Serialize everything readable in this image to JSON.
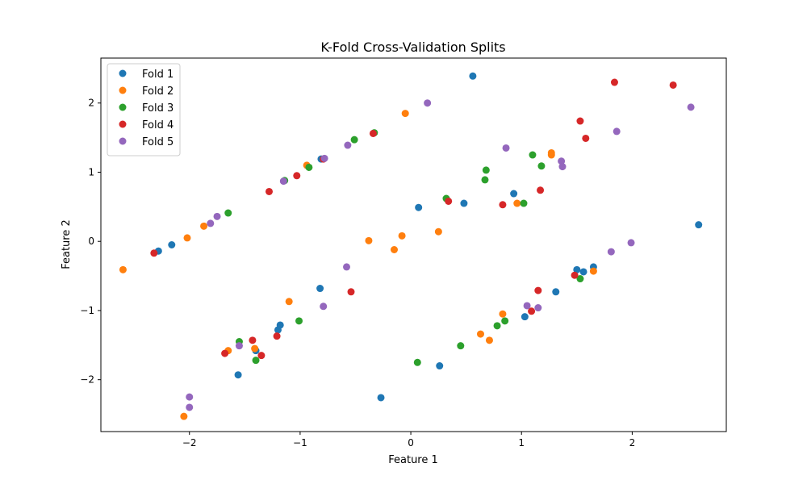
{
  "chart_data": {
    "type": "scatter",
    "title": "K-Fold Cross-Validation Splits",
    "xlabel": "Feature 1",
    "ylabel": "Feature 2",
    "xlim": [
      -2.8,
      2.85
    ],
    "ylim": [
      -2.75,
      2.65
    ],
    "x_ticks": [
      -2,
      -1,
      0,
      1,
      2
    ],
    "x_tick_labels": [
      "−2",
      "−1",
      "0",
      "1",
      "2"
    ],
    "y_ticks": [
      -2,
      -1,
      0,
      1,
      2
    ],
    "y_tick_labels": [
      "−2",
      "−1",
      "0",
      "1",
      "2"
    ],
    "grid": false,
    "legend_position": "top-left",
    "series": [
      {
        "name": "Fold 1",
        "color": "#1f77b4",
        "points": [
          [
            -2.28,
            -0.14
          ],
          [
            -2.16,
            -0.05
          ],
          [
            0.56,
            2.39
          ],
          [
            -0.81,
            1.19
          ],
          [
            0.07,
            0.49
          ],
          [
            0.48,
            0.55
          ],
          [
            0.93,
            0.69
          ],
          [
            -0.82,
            -0.68
          ],
          [
            -1.2,
            -1.28
          ],
          [
            -1.18,
            -1.21
          ],
          [
            -1.4,
            -1.58
          ],
          [
            -1.56,
            -1.93
          ],
          [
            -0.27,
            -2.26
          ],
          [
            0.26,
            -1.8
          ],
          [
            1.03,
            -1.09
          ],
          [
            1.31,
            -0.73
          ],
          [
            1.5,
            -0.41
          ],
          [
            1.56,
            -0.44
          ],
          [
            1.65,
            -0.37
          ],
          [
            2.6,
            0.24
          ]
        ]
      },
      {
        "name": "Fold 2",
        "color": "#ff7f0e",
        "points": [
          [
            -2.6,
            -0.41
          ],
          [
            -2.02,
            0.05
          ],
          [
            -1.87,
            0.22
          ],
          [
            -0.94,
            1.1
          ],
          [
            -0.05,
            1.85
          ],
          [
            -0.38,
            0.01
          ],
          [
            -0.15,
            -0.12
          ],
          [
            -0.08,
            0.08
          ],
          [
            0.25,
            0.14
          ],
          [
            0.96,
            0.55
          ],
          [
            1.27,
            1.25
          ],
          [
            1.27,
            1.28
          ],
          [
            -1.1,
            -0.87
          ],
          [
            -1.65,
            -1.58
          ],
          [
            -1.41,
            -1.55
          ],
          [
            -2.05,
            -2.53
          ],
          [
            0.63,
            -1.34
          ],
          [
            0.71,
            -1.43
          ],
          [
            0.83,
            -1.05
          ],
          [
            1.65,
            -0.43
          ]
        ]
      },
      {
        "name": "Fold 3",
        "color": "#2ca02c",
        "points": [
          [
            -1.65,
            0.41
          ],
          [
            -1.14,
            0.88
          ],
          [
            -0.92,
            1.07
          ],
          [
            -0.51,
            1.47
          ],
          [
            -0.33,
            1.57
          ],
          [
            0.32,
            0.62
          ],
          [
            0.67,
            0.89
          ],
          [
            0.68,
            1.03
          ],
          [
            1.02,
            0.55
          ],
          [
            1.1,
            1.25
          ],
          [
            1.18,
            1.09
          ],
          [
            -1.55,
            -1.45
          ],
          [
            -1.4,
            -1.72
          ],
          [
            -1.01,
            -1.15
          ],
          [
            0.06,
            -1.75
          ],
          [
            0.45,
            -1.51
          ],
          [
            0.78,
            -1.22
          ],
          [
            0.85,
            -1.15
          ],
          [
            1.53,
            -0.54
          ]
        ]
      },
      {
        "name": "Fold 4",
        "color": "#d62728",
        "points": [
          [
            -2.32,
            -0.17
          ],
          [
            -1.28,
            0.72
          ],
          [
            -1.03,
            0.95
          ],
          [
            -0.79,
            1.19
          ],
          [
            -0.34,
            1.56
          ],
          [
            0.34,
            0.58
          ],
          [
            0.83,
            0.53
          ],
          [
            1.17,
            0.74
          ],
          [
            1.53,
            1.74
          ],
          [
            1.58,
            1.49
          ],
          [
            1.84,
            2.3
          ],
          [
            2.37,
            2.26
          ],
          [
            -1.68,
            -1.62
          ],
          [
            -1.43,
            -1.43
          ],
          [
            -1.35,
            -1.65
          ],
          [
            -1.21,
            -1.37
          ],
          [
            -0.54,
            -0.73
          ],
          [
            1.09,
            -1.01
          ],
          [
            1.15,
            -0.71
          ],
          [
            1.48,
            -0.49
          ]
        ]
      },
      {
        "name": "Fold 5",
        "color": "#9467bd",
        "points": [
          [
            -1.81,
            0.26
          ],
          [
            -1.75,
            0.36
          ],
          [
            -1.15,
            0.87
          ],
          [
            -0.78,
            1.2
          ],
          [
            -0.57,
            1.39
          ],
          [
            0.15,
            2.0
          ],
          [
            0.86,
            1.35
          ],
          [
            1.36,
            1.16
          ],
          [
            1.37,
            1.08
          ],
          [
            1.86,
            1.59
          ],
          [
            2.53,
            1.94
          ],
          [
            -2.0,
            -2.25
          ],
          [
            -2.0,
            -2.4
          ],
          [
            -1.55,
            -1.51
          ],
          [
            -0.79,
            -0.94
          ],
          [
            -0.58,
            -0.37
          ],
          [
            1.05,
            -0.93
          ],
          [
            1.15,
            -0.96
          ],
          [
            1.81,
            -0.15
          ],
          [
            1.99,
            -0.02
          ]
        ]
      }
    ]
  }
}
